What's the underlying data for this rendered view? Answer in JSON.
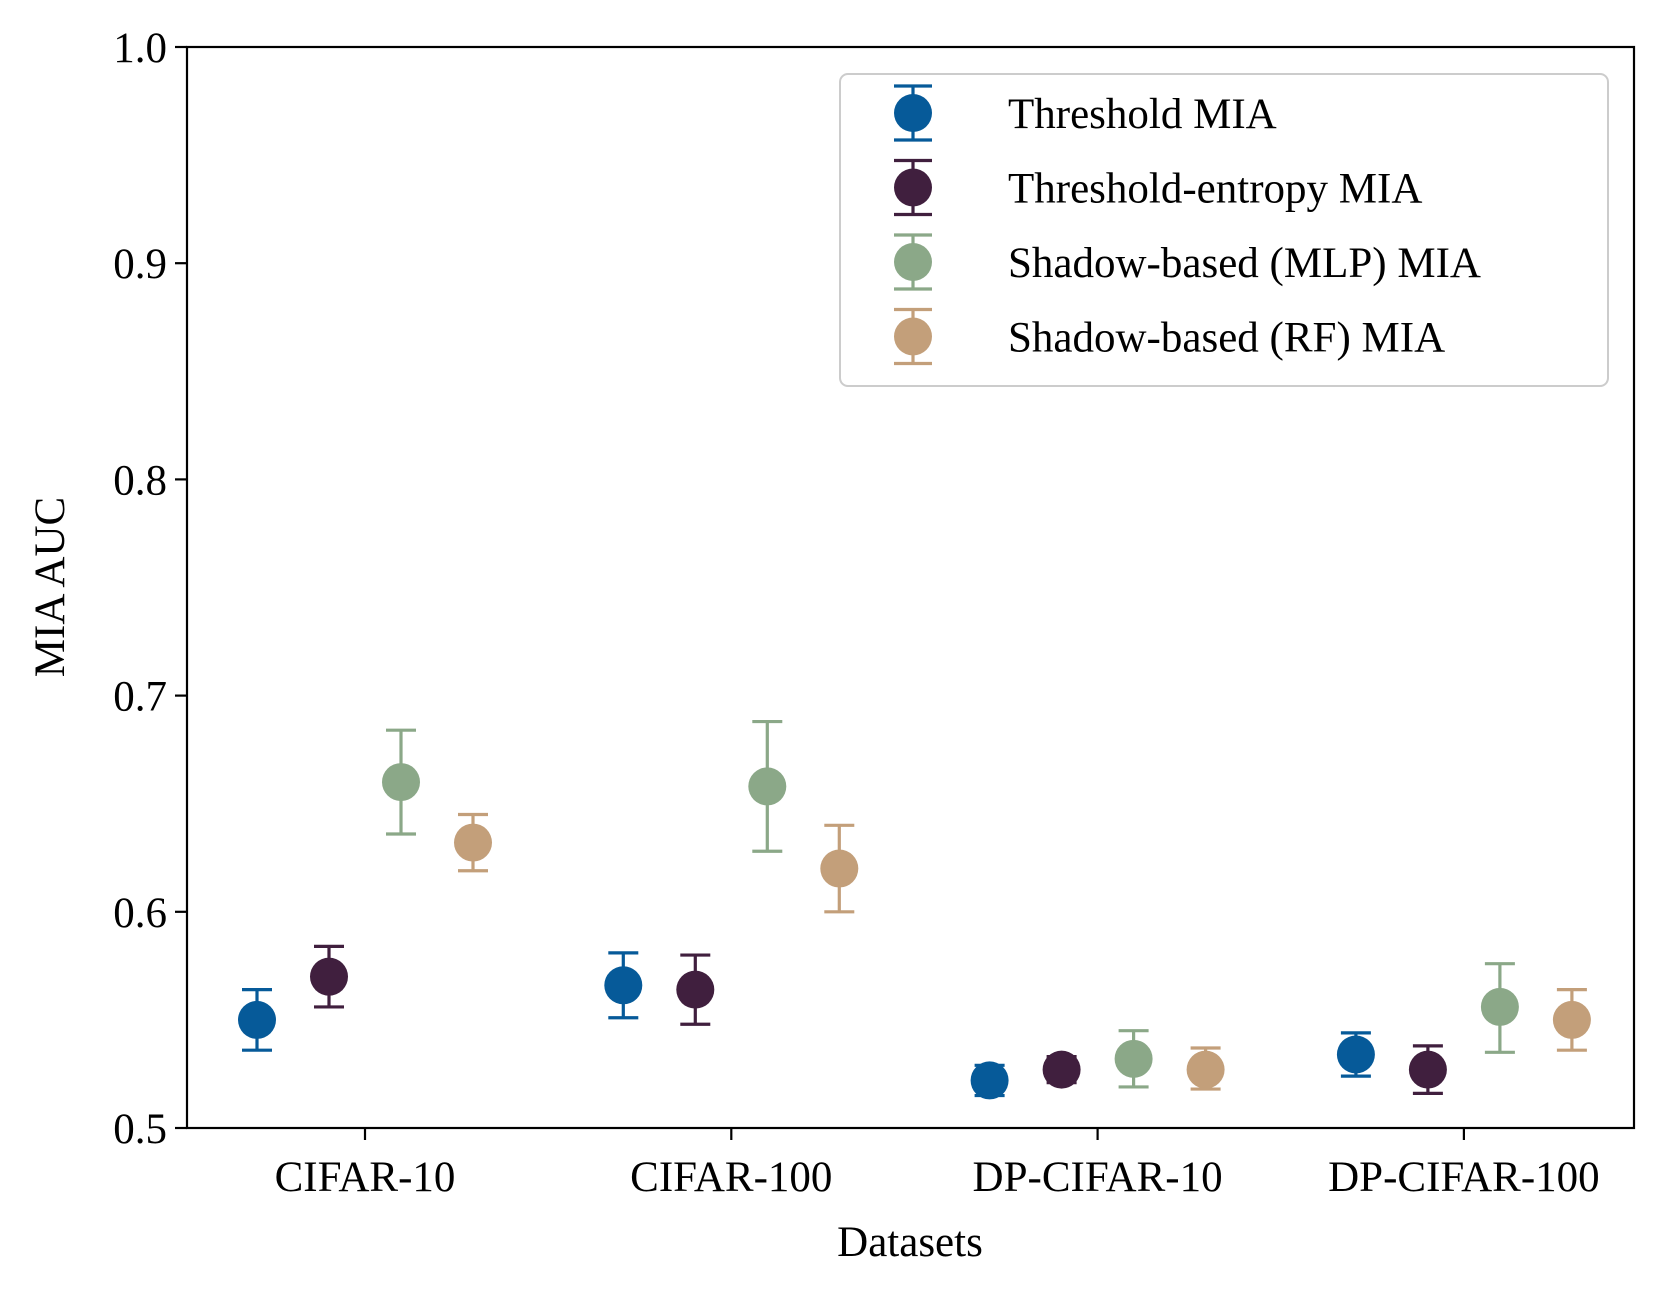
{
  "chart_data": {
    "type": "scatter",
    "xlabel": "Datasets",
    "ylabel": "MIA AUC",
    "ylim": [
      0.5,
      1.0
    ],
    "yticks": [
      "0.5",
      "0.6",
      "0.7",
      "0.8",
      "0.9",
      "1.0"
    ],
    "categories": [
      "CIFAR-10",
      "CIFAR-100",
      "DP-CIFAR-10",
      "DP-CIFAR-100"
    ],
    "grid": false,
    "legend_position": "top-right",
    "series": [
      {
        "name": "Threshold MIA",
        "color": "#065a99",
        "values": [
          0.55,
          0.566,
          0.522,
          0.534
        ],
        "err_low": [
          0.536,
          0.551,
          0.515,
          0.524
        ],
        "err_high": [
          0.564,
          0.581,
          0.529,
          0.544
        ]
      },
      {
        "name": "Threshold-entropy MIA",
        "color": "#401f3e",
        "values": [
          0.57,
          0.564,
          0.527,
          0.527
        ],
        "err_low": [
          0.556,
          0.548,
          0.521,
          0.516
        ],
        "err_high": [
          0.584,
          0.58,
          0.533,
          0.538
        ]
      },
      {
        "name": "Shadow-based (MLP) MIA",
        "color": "#8ba888",
        "values": [
          0.66,
          0.658,
          0.532,
          0.556
        ],
        "err_low": [
          0.636,
          0.628,
          0.519,
          0.535
        ],
        "err_high": [
          0.684,
          0.688,
          0.545,
          0.576
        ]
      },
      {
        "name": "Shadow-based (RF) MIA",
        "color": "#c39f7a",
        "values": [
          0.632,
          0.62,
          0.527,
          0.55
        ],
        "err_low": [
          0.619,
          0.6,
          0.518,
          0.536
        ],
        "err_high": [
          0.645,
          0.64,
          0.537,
          0.564
        ]
      }
    ]
  }
}
